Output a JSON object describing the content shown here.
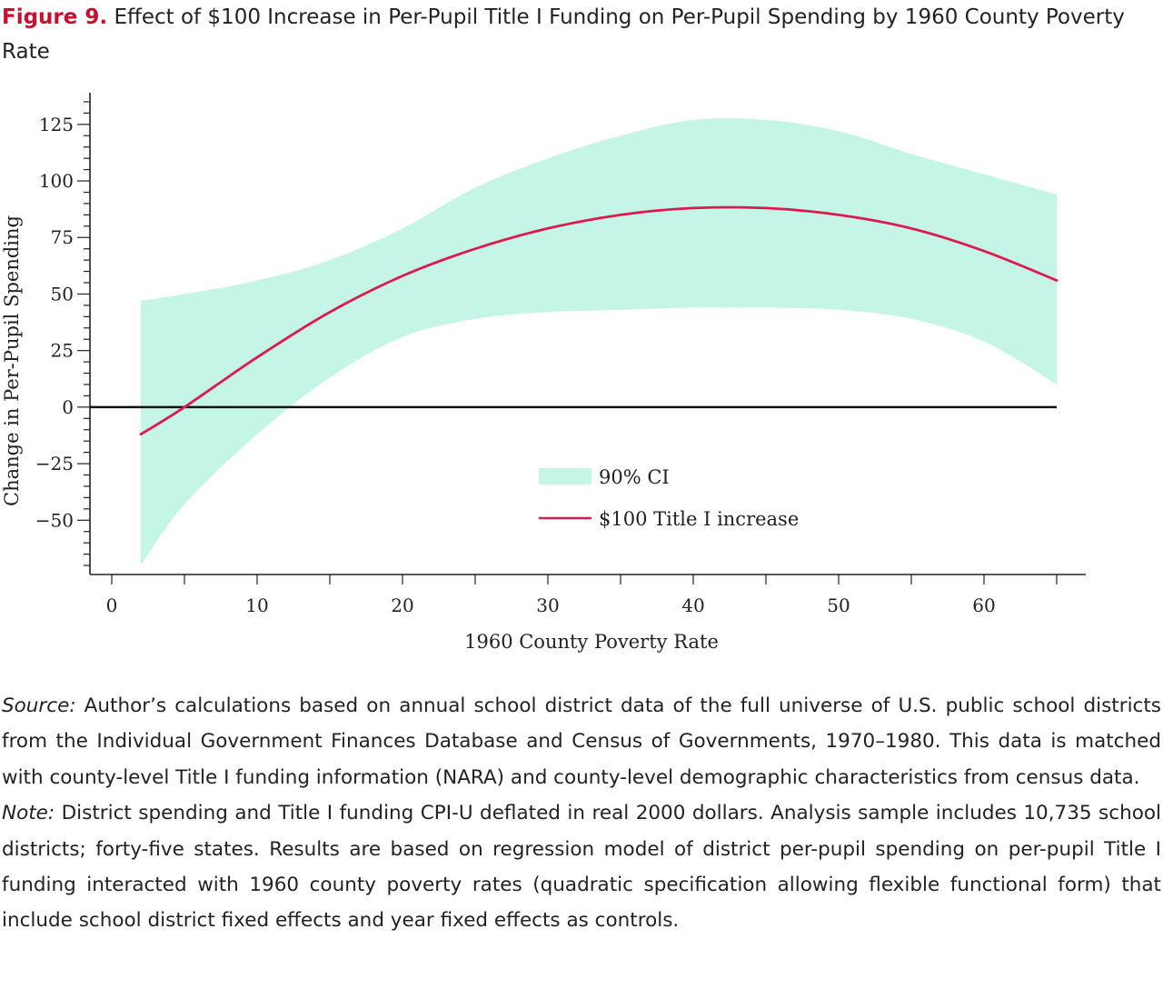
{
  "figure": {
    "label": "Figure 9.",
    "title": "Effect of $100 Increase in Per-Pupil Title I Funding on Per-Pupil Spending by 1960 County Poverty Rate"
  },
  "chart_data": {
    "type": "line",
    "xlabel": "1960 County Poverty Rate",
    "ylabel": "Change in Per-Pupil Spending",
    "xlim": [
      -1.5,
      67
    ],
    "ylim": [
      -74,
      139
    ],
    "x_ticks": [
      0,
      10,
      20,
      30,
      40,
      50,
      60
    ],
    "y_ticks": [
      -50,
      -25,
      0,
      25,
      50,
      75,
      100,
      125
    ],
    "grid": false,
    "legend_position": "bottom-center",
    "zero_line": 0,
    "series": [
      {
        "name": "$100 Title I increase",
        "kind": "line",
        "color": "#dd1a4f",
        "x": [
          2,
          5,
          10,
          15,
          20,
          25,
          30,
          35,
          40,
          45,
          50,
          55,
          60,
          65
        ],
        "y": [
          -12,
          0,
          22,
          42,
          58,
          70,
          79,
          85,
          88,
          88,
          85,
          79,
          69,
          56
        ]
      },
      {
        "name": "90% CI",
        "kind": "band",
        "color": "#c5f5e6",
        "x": [
          2,
          5,
          10,
          15,
          20,
          25,
          30,
          35,
          40,
          45,
          50,
          55,
          60,
          65
        ],
        "lower": [
          -70,
          -43,
          -12,
          13,
          31,
          39,
          42,
          43,
          44,
          44,
          43,
          39,
          29,
          10
        ],
        "upper": [
          47,
          50,
          56,
          65,
          79,
          97,
          110,
          120,
          127,
          127,
          122,
          112,
          103,
          94
        ]
      }
    ]
  },
  "footer": {
    "source_label": "Source:",
    "source_text": " Author’s calculations based on annual school district data of the full universe of U.S. public school districts from the Individual Government Finances Database and Census of Governments, 1970–1980. This data is matched with county-level Title I funding information (NARA) and county-level demographic characteristics from census data.",
    "note_label": "Note:",
    "note_text": " District spending and Title I funding CPI-U deflated in real 2000 dollars. Analysis sample includes 10,735 school districts; forty-five states. Results are based on regression model of district per-pupil spending on per-pupil Title I funding interacted with 1960 county poverty rates (quadratic specification allowing flexible functional form) that include school district fixed effects and year fixed effects as controls."
  }
}
